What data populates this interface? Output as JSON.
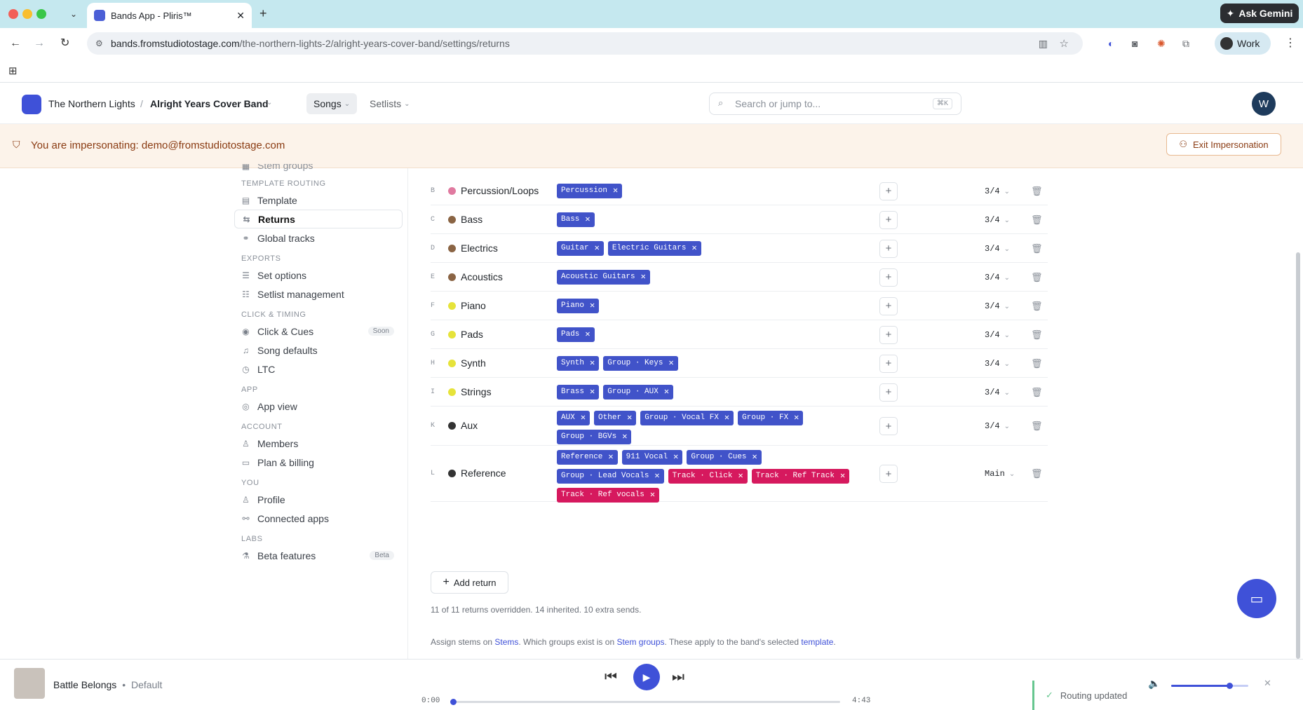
{
  "browser": {
    "tab_title": "Bands App - Pliris™",
    "url_host": "bands.fromstudiotostage.com",
    "url_path": "/the-northern-lights-2/alright-years-cover-band/settings/returns",
    "gemini_label": "Ask Gemini",
    "profile_label": "Work"
  },
  "header": {
    "band": "The Northern Lights",
    "separator": "/",
    "project": "Alright Years Cover Band",
    "nav_songs": "Songs",
    "nav_setlists": "Setlists",
    "search_placeholder": "Search or jump to...",
    "search_kbd": "⌘K",
    "avatar_initial": "W"
  },
  "banner": {
    "text": "You are impersonating: demo@fromstudiotostage.com",
    "exit_label": "Exit Impersonation"
  },
  "sidebar": {
    "partial_item": "Stem groups",
    "sections": [
      {
        "title": "TEMPLATE ROUTING",
        "items": [
          {
            "label": "Template",
            "icon": "▤"
          },
          {
            "label": "Returns",
            "icon": "⇆",
            "active": true
          },
          {
            "label": "Global tracks",
            "icon": "⚭"
          }
        ]
      },
      {
        "title": "EXPORTS",
        "items": [
          {
            "label": "Set options",
            "icon": "☰"
          },
          {
            "label": "Setlist management",
            "icon": "☷"
          }
        ]
      },
      {
        "title": "CLICK & TIMING",
        "items": [
          {
            "label": "Click & Cues",
            "icon": "◉",
            "badge": "Soon"
          },
          {
            "label": "Song defaults",
            "icon": "♫"
          },
          {
            "label": "LTC",
            "icon": "◷"
          }
        ]
      },
      {
        "title": "APP",
        "items": [
          {
            "label": "App view",
            "icon": "◎"
          }
        ]
      },
      {
        "title": "ACCOUNT",
        "items": [
          {
            "label": "Members",
            "icon": "♙"
          },
          {
            "label": "Plan & billing",
            "icon": "▭"
          }
        ]
      },
      {
        "title": "YOU",
        "items": [
          {
            "label": "Profile",
            "icon": "♙"
          },
          {
            "label": "Connected apps",
            "icon": "⚯"
          }
        ]
      },
      {
        "title": "LABS",
        "items": [
          {
            "label": "Beta features",
            "icon": "⚗",
            "badge": "Beta"
          }
        ]
      }
    ]
  },
  "returns": [
    {
      "letter": "B",
      "name": "Percussion/Loops",
      "color": "#e07aa0",
      "chips": [
        {
          "label": "Percussion"
        }
      ],
      "meter": "3/4"
    },
    {
      "letter": "C",
      "name": "Bass",
      "color": "#8a6444",
      "chips": [
        {
          "label": "Bass"
        }
      ],
      "meter": "3/4"
    },
    {
      "letter": "D",
      "name": "Electrics",
      "color": "#8a6444",
      "chips": [
        {
          "label": "Guitar"
        },
        {
          "label": "Electric Guitars"
        }
      ],
      "meter": "3/4"
    },
    {
      "letter": "E",
      "name": "Acoustics",
      "color": "#8a6444",
      "chips": [
        {
          "label": "Acoustic Guitars"
        }
      ],
      "meter": "3/4"
    },
    {
      "letter": "F",
      "name": "Piano",
      "color": "#e6e33a",
      "chips": [
        {
          "label": "Piano"
        }
      ],
      "meter": "3/4"
    },
    {
      "letter": "G",
      "name": "Pads",
      "color": "#e6e33a",
      "chips": [
        {
          "label": "Pads"
        }
      ],
      "meter": "3/4"
    },
    {
      "letter": "H",
      "name": "Synth",
      "color": "#e6e33a",
      "chips": [
        {
          "label": "Synth"
        },
        {
          "label": "Group · Keys"
        }
      ],
      "meter": "3/4"
    },
    {
      "letter": "I",
      "name": "Strings",
      "color": "#e6e33a",
      "chips": [
        {
          "label": "Brass"
        },
        {
          "label": "Group · AUX"
        }
      ],
      "meter": "3/4"
    },
    {
      "letter": "K",
      "name": "Aux",
      "color": "#333333",
      "chips": [
        {
          "label": "AUX"
        },
        {
          "label": "Other"
        },
        {
          "label": "Group · Vocal FX"
        },
        {
          "label": "Group · FX"
        },
        {
          "label": "Group · BGVs"
        }
      ],
      "meter": "3/4"
    },
    {
      "letter": "L",
      "name": "Reference",
      "color": "#333333",
      "chips": [
        {
          "label": "Reference"
        },
        {
          "label": "911 Vocal"
        },
        {
          "label": "Group · Cues"
        },
        {
          "label": "Group · Lead Vocals"
        },
        {
          "label": "Track · Click",
          "pink": true
        },
        {
          "label": "Track · Ref Track",
          "pink": true
        },
        {
          "label": "Track · Ref vocals",
          "pink": true
        }
      ],
      "meter": "Main"
    }
  ],
  "add_return_label": "Add return",
  "summary": "11 of 11 returns overridden. 14 inherited. 10 extra sends.",
  "footnote": {
    "p1": "Assign stems on ",
    "l1": "Stems",
    "p2": ". Which groups exist is on ",
    "l2": "Stem groups",
    "p3": ". These apply to the band's selected ",
    "l3": "template",
    "p4": "."
  },
  "player": {
    "title": "Battle Belongs",
    "sep": "•",
    "subtitle": "Default",
    "time_current": "0:00",
    "time_total": "4:43",
    "progress": 0,
    "volume": 0.75,
    "toast": "Routing updated"
  }
}
